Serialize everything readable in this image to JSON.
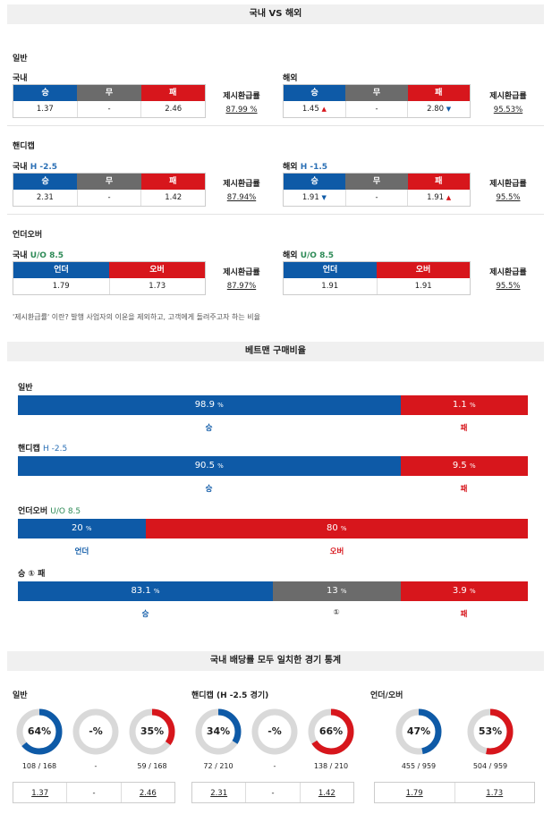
{
  "header1": "국내 VS 해외",
  "general": {
    "section": "일반",
    "left": {
      "title": "국내",
      "h": [
        "승",
        "무",
        "패"
      ],
      "v": [
        "1.37",
        "-",
        "2.46"
      ],
      "refund_label": "제시환급률",
      "refund": "87.99 %"
    },
    "right": {
      "title": "해외",
      "h": [
        "승",
        "무",
        "패"
      ],
      "v": [
        "1.45",
        "-",
        "2.80"
      ],
      "refund_label": "제시환급률",
      "refund": "95.53%"
    }
  },
  "handicap": {
    "section": "핸디캡",
    "left": {
      "title": "국내",
      "line": "H -2.5",
      "h": [
        "승",
        "무",
        "패"
      ],
      "v": [
        "2.31",
        "-",
        "1.42"
      ],
      "refund_label": "제시환급률",
      "refund": "87.94%"
    },
    "right": {
      "title": "해외",
      "line": "H -1.5",
      "h": [
        "승",
        "무",
        "패"
      ],
      "v": [
        "1.91",
        "-",
        "1.91"
      ],
      "refund_label": "제시환급률",
      "refund": "95.5%"
    }
  },
  "underover": {
    "section": "언더오버",
    "left": {
      "title": "국내",
      "line": "U/O 8.5",
      "h": [
        "언더",
        "오버"
      ],
      "v": [
        "1.79",
        "1.73"
      ],
      "refund_label": "제시환급률",
      "refund": "87.97%"
    },
    "right": {
      "title": "해외",
      "line": "U/O 8.5",
      "h": [
        "언더",
        "오버"
      ],
      "v": [
        "1.91",
        "1.91"
      ],
      "refund_label": "제시환급률",
      "refund": "95.5%"
    }
  },
  "note": "'제시환급률' 이란? 발행 사업자의 이윤을 제외하고, 고객에게 돌려주고자 하는 비율",
  "header2": "베트맨 구매비율",
  "ratio": {
    "general": {
      "title": "일반",
      "a": "98.9",
      "b": "1.1",
      "la": "승",
      "lb": "패"
    },
    "handicap": {
      "title": "핸디캡",
      "line": "H -2.5",
      "a": "90.5",
      "b": "9.5",
      "la": "승",
      "lb": "패"
    },
    "underover": {
      "title": "언더오버",
      "line": "U/O 8.5",
      "a": "20",
      "b": "80",
      "la": "언더",
      "lb": "오버"
    },
    "wdl": {
      "title": "승 ① 패",
      "a": "83.1",
      "d": "13",
      "b": "3.9",
      "la": "승",
      "ld": "①",
      "lb": "패"
    },
    "unit": "%"
  },
  "header3": "국내 배당률 모두 일치한 경기 통계",
  "stats": {
    "general": {
      "title": "일반",
      "pcts": [
        "64%",
        "-%",
        "35%"
      ],
      "counts": [
        "108 / 168",
        "-",
        "59 / 168"
      ],
      "odds": [
        "1.37",
        "-",
        "2.46"
      ],
      "fills": [
        0.64,
        0,
        0.35
      ]
    },
    "handicap": {
      "title": "핸디캡 (H -2.5 경기)",
      "pcts": [
        "34%",
        "-%",
        "66%"
      ],
      "counts": [
        "72 / 210",
        "-",
        "138 / 210"
      ],
      "odds": [
        "2.31",
        "-",
        "1.42"
      ],
      "fills": [
        0.34,
        0,
        0.66
      ]
    },
    "underover": {
      "title": "언더/오버",
      "pcts": [
        "47%",
        "53%"
      ],
      "counts": [
        "455 / 959",
        "504 / 959"
      ],
      "odds": [
        "1.79",
        "1.73"
      ],
      "fills": [
        0.47,
        0.53
      ]
    }
  },
  "colors": {
    "blue": "#0e5aa7",
    "red": "#d7161c",
    "gray": "#6b6b6b"
  }
}
